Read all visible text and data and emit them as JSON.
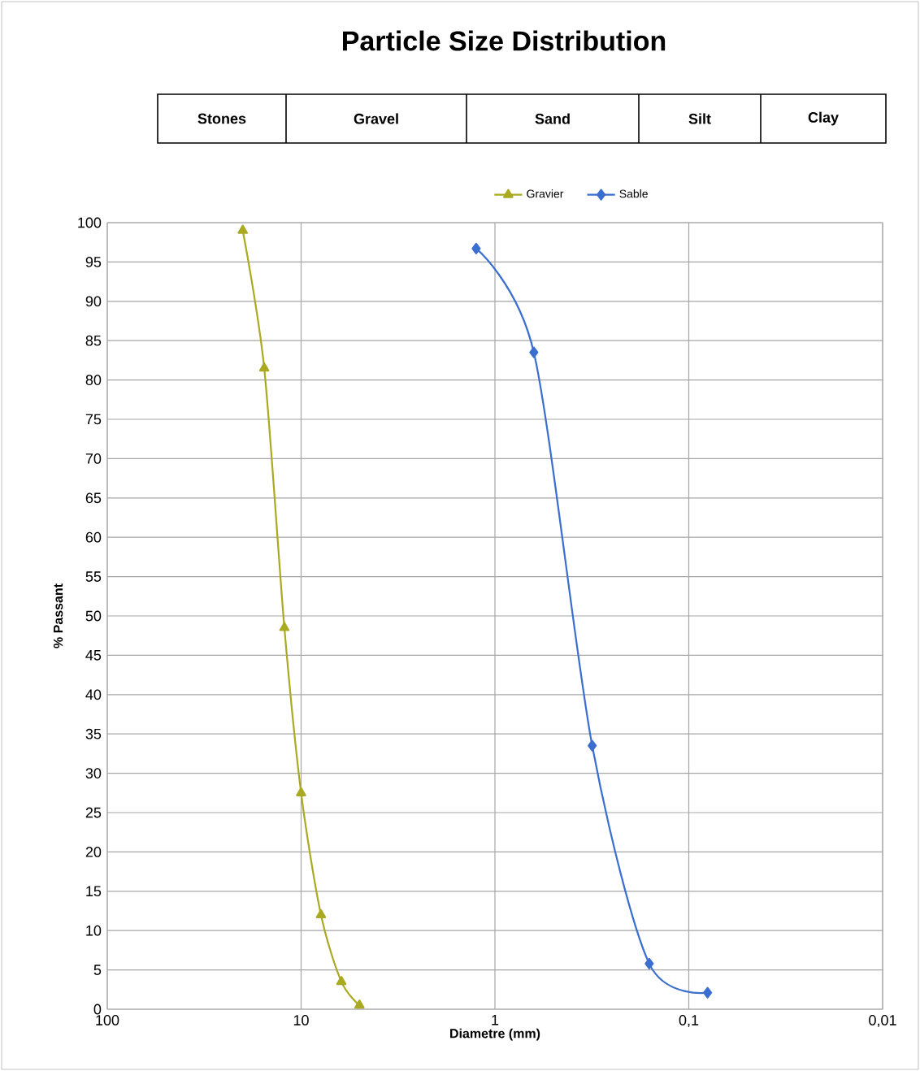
{
  "chart_data": {
    "type": "line",
    "title": "Particle  Size Distribution",
    "xlabel": "Diametre (mm)",
    "ylabel": "% Passant",
    "annotations": [
      "Stones",
      "Gravel",
      "Sand",
      "Silt",
      "Clay"
    ],
    "series": [
      {
        "name": "Gravier",
        "color": "#aaaa22",
        "marker": "triangle",
        "x": [
          20,
          15.5,
          12.2,
          10,
          7.9,
          6.2,
          5
        ],
        "values": [
          99,
          81.5,
          48.5,
          27.5,
          12,
          3.5,
          0.5
        ]
      },
      {
        "name": "Sable",
        "color": "#3a6fd0",
        "marker": "diamond",
        "x": [
          1.25,
          0.63,
          0.315,
          0.16,
          0.08
        ],
        "values": [
          96.7,
          83.5,
          33.5,
          5.8,
          2.1
        ]
      }
    ],
    "log": "x",
    "xlim": [
      100,
      0.01
    ],
    "xticks": [
      100,
      10,
      1,
      {
        "value": 0.1,
        "label": "0,1"
      },
      {
        "value": 0.01,
        "label": "0,01"
      }
    ],
    "ylim": [
      0,
      100
    ],
    "yticks": [
      0,
      5,
      10,
      15,
      20,
      25,
      30,
      35,
      40,
      45,
      50,
      55,
      60,
      65,
      70,
      75,
      80,
      85,
      90,
      95,
      100
    ],
    "grid": true,
    "legend": "top",
    "line_style": "solid"
  }
}
